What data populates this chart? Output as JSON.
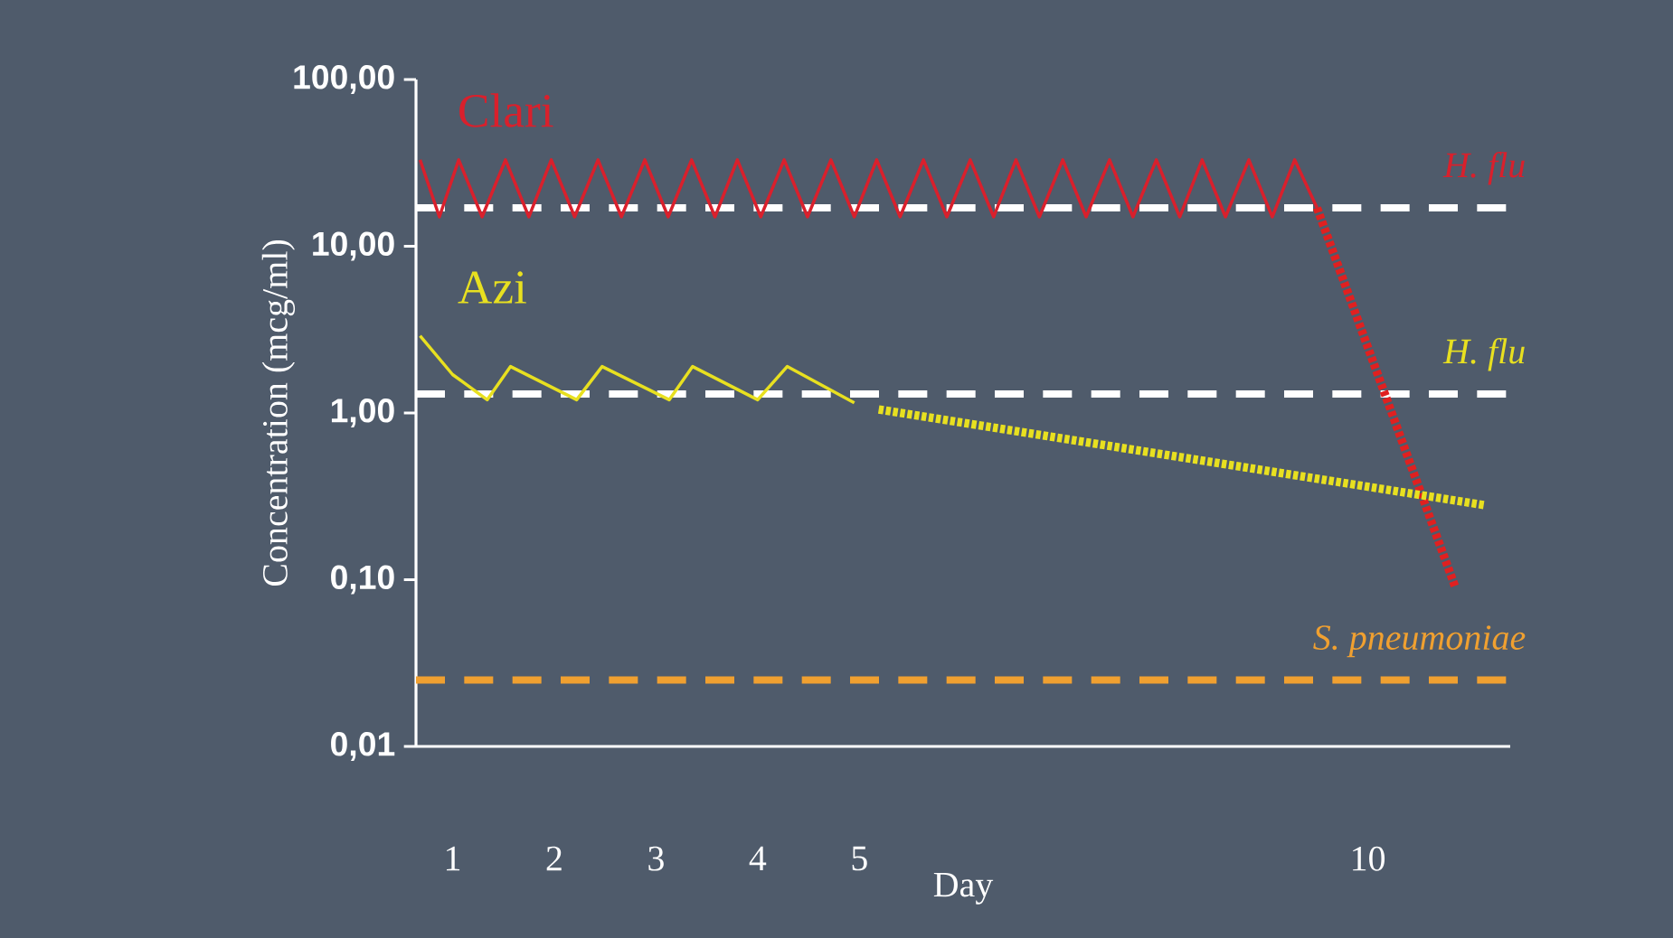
{
  "chart_data": {
    "type": "line",
    "xlabel": "Day",
    "ylabel": "Concentration (mcg/ml)",
    "log": "y",
    "xlim": [
      0.64,
      11.4
    ],
    "xticks": [
      1,
      2,
      3,
      4,
      5,
      10
    ],
    "ylim": [
      0.01,
      100
    ],
    "yticks": [
      {
        "value": 0.01,
        "label": "0,01"
      },
      {
        "value": 0.1,
        "label": "0,10"
      },
      {
        "value": 1,
        "label": "1,00"
      },
      {
        "value": 10,
        "label": "10,00"
      },
      {
        "value": 100,
        "label": "100,00"
      }
    ],
    "series": [
      {
        "name": "Clari",
        "color": "#d9202c",
        "line_style": "solid",
        "x": [
          0.68,
          0.87,
          1.06,
          1.29,
          1.52,
          1.75,
          1.97,
          2.2,
          2.43,
          2.66,
          2.89,
          3.12,
          3.35,
          3.58,
          3.8,
          4.03,
          4.26,
          4.49,
          4.72,
          4.95,
          5.17,
          5.4,
          5.63,
          5.86,
          6.09,
          6.32,
          6.54,
          6.77,
          7.0,
          7.23,
          7.46,
          7.69,
          7.92,
          8.15,
          8.37,
          8.6,
          8.83,
          9.06,
          9.28,
          9.5
        ],
        "values": [
          33,
          15,
          33,
          15,
          33,
          15,
          33,
          15,
          33,
          15,
          33,
          15,
          33,
          15,
          33,
          15,
          33,
          15,
          33,
          15,
          33,
          15,
          33,
          15,
          33,
          15,
          33,
          15,
          33,
          15,
          33,
          15,
          33,
          15,
          33,
          15,
          33,
          15,
          33,
          17
        ]
      },
      {
        "name": "Azi",
        "color": "#e8e020",
        "line_style": "solid",
        "x": [
          0.68,
          1.0,
          1.34,
          1.57,
          2.22,
          2.47,
          3.13,
          3.36,
          4.0,
          4.29,
          4.95
        ],
        "values": [
          2.9,
          1.7,
          1.2,
          1.9,
          1.2,
          1.9,
          1.2,
          1.9,
          1.2,
          1.9,
          1.15
        ]
      },
      {
        "color": "#e02020",
        "line_style": "dotted",
        "x": [
          9.5,
          10.86
        ],
        "values": [
          17,
          0.09
        ]
      },
      {
        "color": "#e8e020",
        "line_style": "dotted",
        "x": [
          5.19,
          11.15
        ],
        "values": [
          1.05,
          0.28
        ]
      }
    ],
    "ref_lines": [
      {
        "axis": "y",
        "value": 17,
        "label": "*H. flu*",
        "color": "#ffffff",
        "line_style": "dashed"
      },
      {
        "axis": "y",
        "value": 1.3,
        "label": "*H. flu*",
        "color": "#ffffff",
        "line_style": "dashed"
      },
      {
        "axis": "y",
        "value": 0.025,
        "label": "*S. pneumoniae*",
        "color": "#f0a030",
        "line_style": "dashed"
      }
    ]
  }
}
